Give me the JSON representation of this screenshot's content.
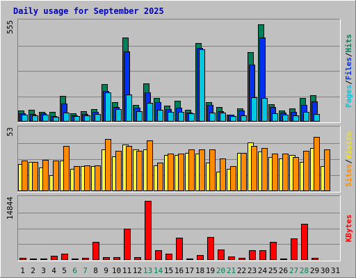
{
  "chart_data": {
    "type": "bar",
    "title": "Daily usage for September 2025",
    "days": [
      "1",
      "2",
      "3",
      "4",
      "5",
      "6",
      "7",
      "8",
      "9",
      "10",
      "11",
      "12",
      "13",
      "14",
      "15",
      "16",
      "17",
      "18",
      "19",
      "20",
      "21",
      "22",
      "23",
      "24",
      "25",
      "26",
      "27",
      "28",
      "29",
      "30",
      "31"
    ],
    "weekend_days": [
      "6",
      "7",
      "13",
      "14",
      "20",
      "21",
      "27",
      "28"
    ],
    "panels": [
      {
        "name": "hits-files-pages",
        "ymax_label": "555",
        "ymax": 555,
        "ylabel_parts": [
          "Pages",
          "Files",
          "Hits"
        ],
        "ylabel_colors": [
          "#00c8e0",
          "#0030f0",
          "#00805a"
        ],
        "series": [
          {
            "name": "Hits",
            "color": "#00805a",
            "values": [
              63,
              67,
              57,
              55,
              148,
              48,
              60,
              72,
              215,
              110,
              480,
              97,
              217,
              133,
              90,
              119,
              69,
              448,
              112,
              84,
              40,
              76,
              395,
              555,
              100,
              65,
              74,
              134,
              152,
              0,
              0
            ]
          },
          {
            "name": "Files",
            "color": "#0030f0",
            "values": [
              46,
              44,
              46,
              33,
              104,
              36,
              45,
              55,
              176,
              84,
              402,
              78,
              167,
              111,
              70,
              80,
              52,
              420,
              95,
              61,
              38,
              65,
              325,
              479,
              85,
              52,
              57,
              94,
              113,
              0,
              0
            ]
          },
          {
            "name": "Pages",
            "color": "#00c8e0",
            "values": [
              40,
              37,
              38,
              26,
              53,
              30,
              36,
              43,
              166,
              71,
              154,
              60,
              107,
              69,
              55,
              54,
              46,
              412,
              50,
              51,
              31,
              36,
              138,
              136,
              47,
              38,
              34,
              57,
              42,
              0,
              0
            ]
          }
        ]
      },
      {
        "name": "visits-sites",
        "ymax_label": "53",
        "ymax": 53,
        "ylabel_parts": [
          "Sites",
          "Visits"
        ],
        "ylabel_colors": [
          "#ff8c00",
          "#f0e020"
        ],
        "series": [
          {
            "name": "Visits",
            "color": "#ffff40",
            "values": [
              24,
              26,
              21,
              14,
              27,
              20,
              22,
              22,
              37,
              31,
              41,
              37,
              37,
              23,
              32,
              32,
              34,
              33,
              25,
              17,
              20,
              34,
              43,
              35,
              30,
              29,
              32,
              26,
              38,
              22,
              0
            ]
          },
          {
            "name": "Sites",
            "color": "#ff8c00",
            "values": [
              27,
              26,
              28,
              27,
              40,
              22,
              23,
              23,
              46,
              36,
              40,
              36,
              45,
              25,
              33,
              33,
              37,
              37,
              37,
              29,
              22,
              34,
              40,
              38,
              33,
              33,
              30,
              36,
              48,
              37,
              0
            ]
          }
        ]
      },
      {
        "name": "kbytes",
        "ymax_label": "14844",
        "ymax": 14844,
        "ylabel_parts": [
          "KBytes"
        ],
        "ylabel_colors": [
          "#ff0000"
        ],
        "series": [
          {
            "name": "KBytes",
            "color": "#ff0000",
            "values": [
              600,
              300,
              400,
              1100,
              1600,
              300,
              600,
              4500,
              700,
              700,
              7800,
              700,
              14844,
              2400,
              1500,
              5600,
              400,
              1200,
              5700,
              2700,
              800,
              600,
              2500,
              2400,
              4500,
              300,
              5400,
              9100,
              500,
              0,
              0
            ]
          }
        ]
      }
    ]
  }
}
